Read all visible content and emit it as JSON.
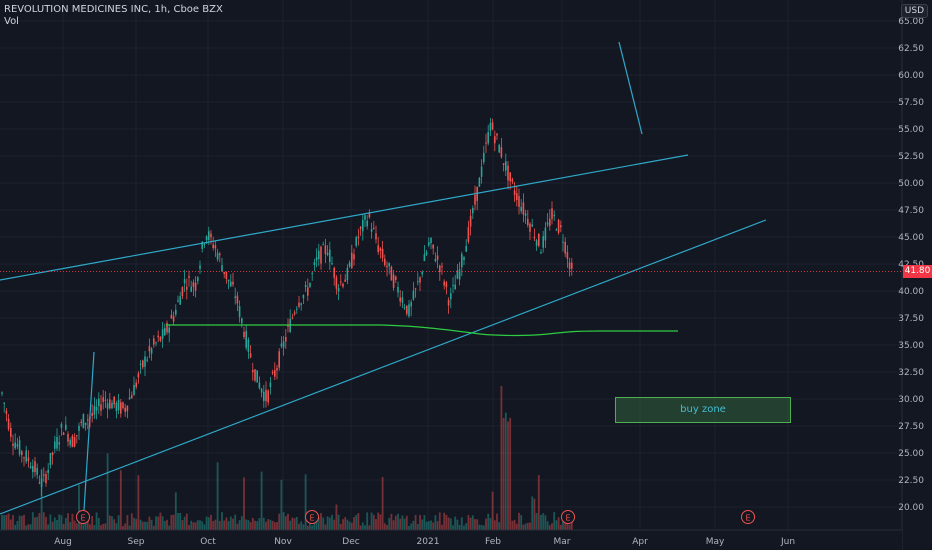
{
  "legend": {
    "symbol_line": "REVOLUTION MEDICINES INC, 1h, Cboe BZX",
    "volume_label": "Vol"
  },
  "axis": {
    "currency_badge": "USD"
  },
  "colors": {
    "background": "#131722",
    "grid": "#1e222d",
    "up_candle": "#26a69a",
    "down_candle": "#ef5350",
    "trendline": "#2fa8c8",
    "moving_average": "#2ecc40",
    "last_price": "#f23645",
    "earnings_marker": "#ef5350"
  },
  "chart_data": {
    "type": "candlestick",
    "title": "REVOLUTION MEDICINES INC, 1h, Cboe BZX",
    "y_axis": {
      "ticks": [
        "20.00",
        "22.50",
        "25.00",
        "27.50",
        "30.00",
        "32.50",
        "35.00",
        "37.50",
        "40.00",
        "42.50",
        "45.00",
        "47.50",
        "50.00",
        "52.50",
        "55.00",
        "57.50",
        "60.00",
        "62.50",
        "65.00"
      ],
      "range": [
        18.5,
        65.0
      ]
    },
    "x_axis": {
      "ticks": [
        "Aug",
        "Sep",
        "Oct",
        "Nov",
        "Dec",
        "2021",
        "Feb",
        "Mar",
        "Apr",
        "May",
        "Jun"
      ]
    },
    "price_path": [
      [
        "Jul",
        30.5
      ],
      [
        "Jul",
        26.5
      ],
      [
        "Jul",
        25.0
      ],
      [
        "Jul",
        24.0
      ],
      [
        "Aug",
        22.0
      ],
      [
        "Aug",
        25.0
      ],
      [
        "Aug",
        27.5
      ],
      [
        "Aug",
        26.0
      ],
      [
        "Aug",
        28.0
      ],
      [
        "Sep",
        28.5
      ],
      [
        "Sep",
        30.0
      ],
      [
        "Sep",
        29.5
      ],
      [
        "Sep",
        29.0
      ],
      [
        "Sep",
        31.0
      ],
      [
        "Sep",
        33.5
      ],
      [
        "Sep",
        35.0
      ],
      [
        "Sep",
        36.0
      ],
      [
        "Oct",
        38.0
      ],
      [
        "Oct",
        41.0
      ],
      [
        "Oct",
        40.5
      ],
      [
        "Oct",
        45.5
      ],
      [
        "Oct",
        44.0
      ],
      [
        "Oct",
        41.5
      ],
      [
        "Oct",
        39.5
      ],
      [
        "Nov",
        35.5
      ],
      [
        "Nov",
        32.0
      ],
      [
        "Nov",
        30.0
      ],
      [
        "Nov",
        33.0
      ],
      [
        "Nov",
        36.0
      ],
      [
        "Nov",
        39.0
      ],
      [
        "Nov",
        40.0
      ],
      [
        "Dec",
        43.0
      ],
      [
        "Dec",
        44.0
      ],
      [
        "Dec",
        40.5
      ],
      [
        "Dec",
        41.5
      ],
      [
        "Dec",
        45.0
      ],
      [
        "Dec",
        47.0
      ],
      [
        "Dec",
        44.0
      ],
      [
        "2021",
        42.0
      ],
      [
        "2021",
        40.0
      ],
      [
        "2021",
        38.0
      ],
      [
        "2021",
        41.0
      ],
      [
        "2021",
        44.5
      ],
      [
        "2021",
        42.5
      ],
      [
        "2021",
        39.0
      ],
      [
        "2021",
        42.0
      ],
      [
        "Feb",
        46.0
      ],
      [
        "Feb",
        50.5
      ],
      [
        "Feb",
        55.5
      ],
      [
        "Feb",
        53.0
      ],
      [
        "Feb",
        50.0
      ],
      [
        "Feb",
        48.0
      ],
      [
        "Feb",
        46.0
      ],
      [
        "Mar",
        44.0
      ],
      [
        "Mar",
        47.0
      ],
      [
        "Mar",
        45.5
      ],
      [
        "Mar",
        41.8
      ]
    ],
    "last_price": "41.80",
    "annotations": [
      {
        "type": "rectangle",
        "label": "buy zone",
        "y_range": [
          28.0,
          30.2
        ]
      },
      {
        "type": "earnings",
        "label": "E",
        "count": 4
      }
    ],
    "grid": true,
    "legend_placement": "top-left"
  }
}
